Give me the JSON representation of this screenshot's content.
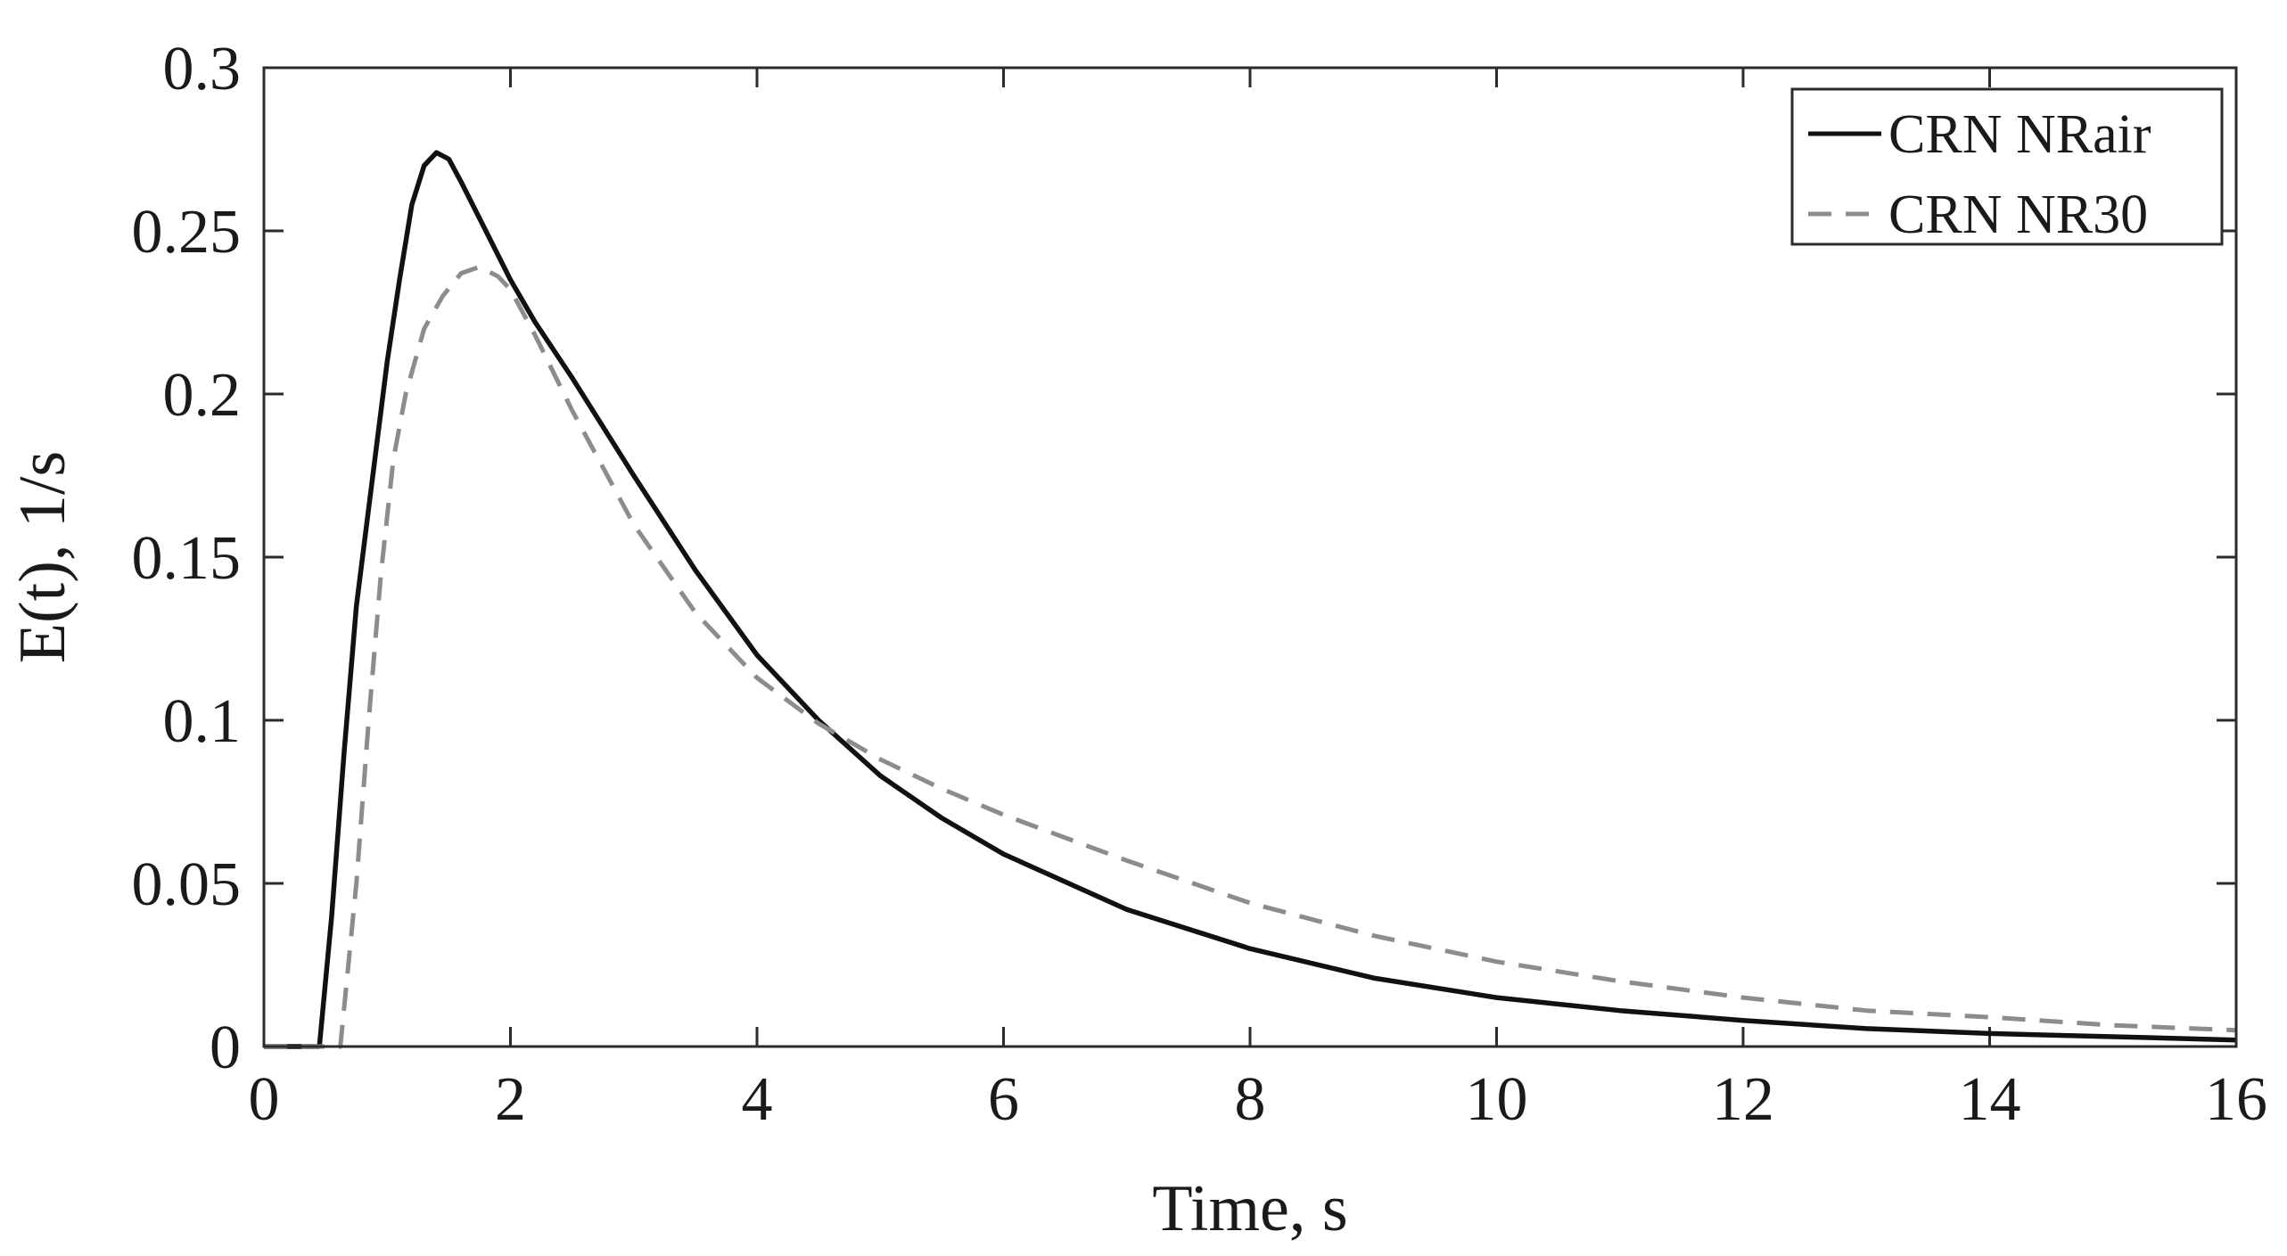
{
  "chart_data": {
    "type": "line",
    "title": "",
    "xlabel": "Time, s",
    "ylabel": "E(t), 1/s",
    "xlim": [
      0,
      16
    ],
    "ylim": [
      0,
      0.3
    ],
    "xticks": [
      0,
      2,
      4,
      6,
      8,
      10,
      12,
      14,
      16
    ],
    "yticks": [
      0,
      0.05,
      0.1,
      0.15,
      0.2,
      0.25,
      0.3
    ],
    "xtick_labels": [
      "0",
      "2",
      "4",
      "6",
      "8",
      "10",
      "12",
      "14",
      "16"
    ],
    "ytick_labels": [
      "0",
      "0.05",
      "0.1",
      "0.15",
      "0.2",
      "0.25",
      "0.3"
    ],
    "grid": false,
    "legend_position": "top-right",
    "series": [
      {
        "name": "CRN NRair",
        "color": "#111111",
        "style": "solid",
        "x": [
          0.0,
          0.45,
          0.55,
          0.65,
          0.75,
          0.85,
          1.0,
          1.1,
          1.2,
          1.3,
          1.4,
          1.5,
          1.6,
          1.8,
          2.0,
          2.2,
          2.5,
          3.0,
          3.5,
          4.0,
          4.5,
          5.0,
          5.5,
          6.0,
          7.0,
          8.0,
          9.0,
          10.0,
          11.0,
          12.0,
          13.0,
          14.0,
          15.0,
          16.0
        ],
        "y": [
          0.0,
          0.0,
          0.04,
          0.09,
          0.135,
          0.165,
          0.21,
          0.235,
          0.258,
          0.27,
          0.274,
          0.272,
          0.265,
          0.25,
          0.235,
          0.222,
          0.205,
          0.175,
          0.146,
          0.12,
          0.1,
          0.083,
          0.07,
          0.059,
          0.042,
          0.03,
          0.021,
          0.015,
          0.011,
          0.008,
          0.0055,
          0.004,
          0.003,
          0.002
        ]
      },
      {
        "name": "CRN NR30",
        "color": "#8c8c8c",
        "style": "dashed",
        "x": [
          0.0,
          0.62,
          0.75,
          0.85,
          0.95,
          1.05,
          1.15,
          1.3,
          1.45,
          1.6,
          1.75,
          1.9,
          2.0,
          2.2,
          2.5,
          3.0,
          3.5,
          4.0,
          4.5,
          5.0,
          5.5,
          6.0,
          7.0,
          8.0,
          9.0,
          10.0,
          11.0,
          12.0,
          13.0,
          14.0,
          15.0,
          16.0
        ],
        "y": [
          0.0,
          0.0,
          0.05,
          0.1,
          0.145,
          0.18,
          0.2,
          0.22,
          0.23,
          0.237,
          0.239,
          0.236,
          0.232,
          0.218,
          0.195,
          0.16,
          0.133,
          0.113,
          0.099,
          0.088,
          0.079,
          0.071,
          0.057,
          0.044,
          0.034,
          0.026,
          0.02,
          0.015,
          0.011,
          0.009,
          0.0065,
          0.005
        ]
      }
    ]
  }
}
